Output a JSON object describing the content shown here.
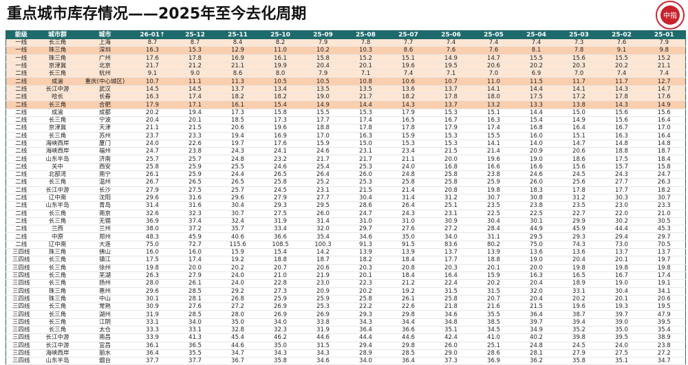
{
  "title": "重点城市库存情况——2025年至今去化周期",
  "logo": "中指",
  "table": {
    "columns": [
      "能级",
      "城市群",
      "城市",
      "26-01↑",
      "25-12",
      "25-11",
      "25-10",
      "25-09",
      "25-08",
      "25-07",
      "25-06",
      "25-05",
      "25-04",
      "25-03",
      "25-02",
      "25-01"
    ],
    "rows": [
      [
        "一线",
        "长三角",
        "上海",
        "8.7",
        "8.7",
        "8.4",
        "8.2",
        "7.9",
        "7.8",
        "7.7",
        "7.4",
        "7.4",
        "7.4",
        "7.3",
        "7.6",
        "7.9"
      ],
      [
        "一线",
        "珠三角",
        "深圳",
        "16.3",
        "15.3",
        "12.9",
        "11.0",
        "10.2",
        "10.3",
        "8.6",
        "7.6",
        "7.6",
        "8.1",
        "7.8",
        "9.1",
        "9.8"
      ],
      [
        "一线",
        "珠三角",
        "广州",
        "17.6",
        "17.8",
        "16.9",
        "16.1",
        "15.8",
        "15.2",
        "15.1",
        "14.9",
        "14.7",
        "15.5",
        "15.6",
        "15.5",
        "15.2"
      ],
      [
        "一线",
        "京津冀",
        "北京",
        "21.7",
        "21.2",
        "21.1",
        "19.9",
        "20.4",
        "20.1",
        "19.6",
        "19.5",
        "20.6",
        "20.2",
        "20.3",
        "20.2",
        "21.1"
      ],
      [
        "二线",
        "长三角",
        "杭州",
        "9.1",
        "9.0",
        "8.6",
        "8.0",
        "7.9",
        "7.1",
        "7.4",
        "7.1",
        "7.0",
        "6.9",
        "7.0",
        "7.4",
        "7.4"
      ],
      [
        "二线",
        "成渝",
        "重庆(中心城区)",
        "10.7",
        "11.1",
        "11.3",
        "10.5",
        "10.5",
        "10.8",
        "10.6",
        "10.7",
        "11.0",
        "11.5",
        "11.7",
        "11.7",
        "12.7"
      ],
      [
        "二线",
        "长江中游",
        "武汉",
        "14.5",
        "14.5",
        "13.7",
        "13.4",
        "13.5",
        "13.5",
        "13.6",
        "13.7",
        "14.1",
        "14.4",
        "14.1",
        "14.3",
        "14.7"
      ],
      [
        "二线",
        "哈长",
        "长春",
        "16.3",
        "17.4",
        "18.2",
        "18.2",
        "19.0",
        "21.7",
        "18.2",
        "17.8",
        "18.0",
        "17.5",
        "17.2",
        "17.8",
        "17.6"
      ],
      [
        "二线",
        "长三角",
        "合肥",
        "17.9",
        "17.1",
        "16.1",
        "15.4",
        "14.9",
        "14.4",
        "14.3",
        "13.7",
        "13.2",
        "13.3",
        "13.8",
        "14.3",
        "14.9"
      ],
      [
        "二线",
        "成渝",
        "成都",
        "20.2",
        "19.4",
        "17.3",
        "15.8",
        "15.5",
        "15.3",
        "17.9",
        "15.3",
        "15.1",
        "14.4",
        "15.0",
        "15.6",
        "15.6"
      ],
      [
        "二线",
        "长三角",
        "宁波",
        "20.4",
        "20.1",
        "18.5",
        "17.3",
        "17.7",
        "17.4",
        "16.5",
        "16.7",
        "16.3",
        "15.4",
        "14.9",
        "15.6",
        "16.4"
      ],
      [
        "二线",
        "京津冀",
        "天津",
        "21.1",
        "21.5",
        "20.6",
        "19.6",
        "18.8",
        "17.8",
        "17.8",
        "17.9",
        "17.4",
        "16.8",
        "16.4",
        "16.7",
        "17.0"
      ],
      [
        "二线",
        "长三角",
        "苏州",
        "23.7",
        "23.3",
        "19.4",
        "16.9",
        "17.0",
        "16.3",
        "15.9",
        "15.3",
        "15.5",
        "16.0",
        "15.1",
        "16.3",
        "16.4"
      ],
      [
        "二线",
        "海峡西岸",
        "厦门",
        "24.0",
        "22.6",
        "19.7",
        "17.6",
        "15.9",
        "15.0",
        "15.3",
        "15.3",
        "14.1",
        "14.0",
        "14.7",
        "14.8",
        "14.8"
      ],
      [
        "二线",
        "海峡西岸",
        "福州",
        "24.7",
        "23.8",
        "24.3",
        "24.1",
        "24.6",
        "23.1",
        "23.4",
        "21.5",
        "21.4",
        "20.9",
        "20.6",
        "18.8",
        "18.7"
      ],
      [
        "二线",
        "山东半岛",
        "济南",
        "25.7",
        "25.7",
        "24.8",
        "23.2",
        "21.7",
        "21.7",
        "21.1",
        "20.0",
        "19.6",
        "19.0",
        "18.6",
        "17.5",
        "18.4"
      ],
      [
        "二线",
        "关中",
        "西安",
        "25.8",
        "25.9",
        "25.5",
        "24.6",
        "25.4",
        "25.3",
        "24.0",
        "16.8",
        "16.6",
        "16.6",
        "15.6",
        "15.7",
        "15.8"
      ],
      [
        "二线",
        "北部湾",
        "南宁",
        "26.1",
        "25.9",
        "24.4",
        "26.5",
        "26.4",
        "26.0",
        "24.8",
        "25.8",
        "23.8",
        "24.6",
        "24.5",
        "24.3",
        "24.7"
      ],
      [
        "二线",
        "长三角",
        "温州",
        "26.7",
        "26.5",
        "26.5",
        "25.8",
        "25.2",
        "25.3",
        "25.8",
        "25.8",
        "25.9",
        "26.0",
        "25.6",
        "27.7",
        "26.3"
      ],
      [
        "二线",
        "长江中游",
        "长沙",
        "27.9",
        "27.5",
        "25.7",
        "24.5",
        "23.1",
        "21.5",
        "21.4",
        "20.8",
        "19.8",
        "18.3",
        "17.8",
        "17.7",
        "18.2"
      ],
      [
        "二线",
        "辽中南",
        "沈阳",
        "29.6",
        "31.6",
        "29.6",
        "27.9",
        "27.7",
        "30.4",
        "31.4",
        "31.2",
        "30.7",
        "30.8",
        "31.2",
        "30.3",
        "30.7"
      ],
      [
        "二线",
        "山东半岛",
        "青岛",
        "31.4",
        "31.6",
        "30.4",
        "29.3",
        "29.5",
        "28.6",
        "26.4",
        "25.1",
        "23.5",
        "23.8",
        "23.5",
        "23.0",
        "23.3"
      ],
      [
        "二线",
        "长三角",
        "南京",
        "32.6",
        "32.3",
        "30.7",
        "27.5",
        "26.0",
        "24.7",
        "24.3",
        "23.1",
        "22.5",
        "22.5",
        "22.7",
        "22.0",
        "21.0"
      ],
      [
        "二线",
        "长三角",
        "无锡",
        "36.9",
        "37.4",
        "32.4",
        "31.9",
        "31.4",
        "31.0",
        "31.0",
        "30.9",
        "30.4",
        "30.1",
        "29.9",
        "30.2",
        "30.5"
      ],
      [
        "二线",
        "兰西",
        "兰州",
        "38.0",
        "37.2",
        "35.7",
        "33.4",
        "32.0",
        "29.7",
        "27.6",
        "27.2",
        "28.4",
        "44.9",
        "45.9",
        "44.4",
        "45.3"
      ],
      [
        "二线",
        "中原",
        "郑州",
        "48.3",
        "45.9",
        "40.6",
        "36.6",
        "35.4",
        "34.6",
        "35.0",
        "34.0",
        "31.1",
        "29.5",
        "29.3",
        "29.4",
        "29.7"
      ],
      [
        "二线",
        "辽中南",
        "大连",
        "75.0",
        "72.7",
        "115.6",
        "108.5",
        "100.3",
        "91.3",
        "91.5",
        "83.6",
        "80.2",
        "75.0",
        "74.3",
        "73.0",
        "70.5"
      ],
      [
        "三四线",
        "珠三角",
        "佛山",
        "16.0",
        "16.0",
        "15.9",
        "15.4",
        "14.2",
        "13.9",
        "13.9",
        "13.7",
        "13.9",
        "13.6",
        "13.6",
        "13.7",
        "13.7"
      ],
      [
        "三四线",
        "长三角",
        "镇江",
        "17.5",
        "17.4",
        "19.2",
        "18.8",
        "18.7",
        "18.2",
        "18.4",
        "17.7",
        "18.8",
        "19.0",
        "20.4",
        "20.1",
        "19.7"
      ],
      [
        "三四线",
        "长三角",
        "徐州",
        "19.8",
        "20.0",
        "20.2",
        "20.7",
        "20.6",
        "20.3",
        "20.8",
        "20.3",
        "20.1",
        "20.0",
        "19.8",
        "19.8",
        "19.8"
      ],
      [
        "三四线",
        "长三角",
        "芜湖",
        "26.3",
        "27.9",
        "24.0",
        "21.0",
        "21.9",
        "20.1",
        "18.4",
        "16.4",
        "15.9",
        "16.3",
        "16.5",
        "16.7",
        "17.4"
      ],
      [
        "三四线",
        "长三角",
        "扬州",
        "28.0",
        "26.1",
        "24.0",
        "22.8",
        "23.0",
        "22.3",
        "21.2",
        "22.4",
        "20.2",
        "20.4",
        "18.9",
        "19.0",
        "19.1"
      ],
      [
        "三四线",
        "珠三角",
        "惠州",
        "29.6",
        "28.5",
        "29.2",
        "27.3",
        "20.9",
        "20.2",
        "19.2",
        "31.5",
        "31.5",
        "32.0",
        "33.1",
        "30.4",
        "34.1"
      ],
      [
        "三四线",
        "珠三角",
        "中山",
        "30.1",
        "28.1",
        "26.8",
        "25.9",
        "25.9",
        "25.8",
        "26.1",
        "25.8",
        "20.7",
        "20.4",
        "20.2",
        "20.1",
        "20.6"
      ],
      [
        "三四线",
        "长三角",
        "常熟",
        "30.9",
        "27.6",
        "27.2",
        "26.9",
        "25.3",
        "22.2",
        "22.6",
        "21.8",
        "21.6",
        "21.5",
        "19.6",
        "19.3",
        "19.5"
      ],
      [
        "三四线",
        "长三角",
        "湖州",
        "31.9",
        "28.5",
        "28.0",
        "26.9",
        "26.9",
        "29.3",
        "29.8",
        "34.6",
        "35.5",
        "36.4",
        "38.7",
        "39.7",
        "47.9"
      ],
      [
        "三四线",
        "长三角",
        "江阴",
        "33.1",
        "34.0",
        "35.0",
        "34.0",
        "33.8",
        "34.3",
        "34.4",
        "34.8",
        "38.5",
        "39.7",
        "39.4",
        "39.0",
        "39.5"
      ],
      [
        "三四线",
        "长三角",
        "太仓",
        "33.3",
        "33.1",
        "32.8",
        "32.3",
        "31.9",
        "36.4",
        "36.6",
        "35.1",
        "34.5",
        "34.9",
        "35.2",
        "35.0",
        "35.4"
      ],
      [
        "三四线",
        "长江中游",
        "南昌",
        "33.9",
        "41.3",
        "45.4",
        "46.2",
        "44.6",
        "44.4",
        "44.6",
        "42.4",
        "41.0",
        "40.2",
        "39.8",
        "39.5",
        "38.9"
      ],
      [
        "三四线",
        "长江中游",
        "宜昌",
        "36.1",
        "36.5",
        "44.6",
        "35.0",
        "31.5",
        "29.4",
        "29.8",
        "26.0",
        "25.1",
        "24.8",
        "24.5",
        "24.0",
        "23.8"
      ],
      [
        "三四线",
        "海峡西岸",
        "丽水",
        "36.4",
        "35.5",
        "34.7",
        "34.3",
        "34.3",
        "28.9",
        "28.5",
        "29.0",
        "28.6",
        "28.1",
        "27.9",
        "27.5",
        "27.2"
      ],
      [
        "三四线",
        "山东半岛",
        "烟台",
        "37.7",
        "37.7",
        "36.7",
        "35.8",
        "34.6",
        "34.0",
        "36.4",
        "37.3",
        "36.9",
        "36.2",
        "35.8",
        "35.1",
        "34.7"
      ]
    ]
  }
}
